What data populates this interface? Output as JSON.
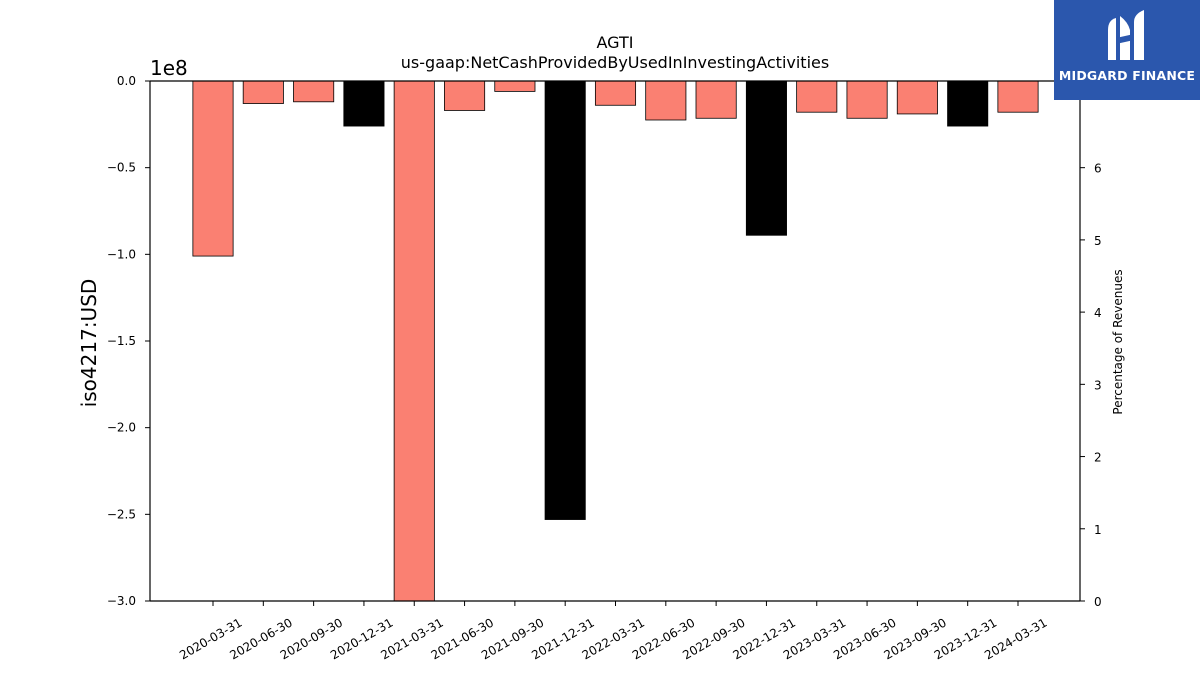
{
  "chart_data": {
    "type": "bar",
    "title": "AGTI",
    "subtitle": "us-gaap:NetCashProvidedByUsedInInvestingActivities",
    "ylabel": "iso4217:USD",
    "y2label": "Percentage of Revenues",
    "y_offset_label": "1e8",
    "ylim": [
      -3.0,
      0.0
    ],
    "y_ticks": [
      0.0,
      -0.5,
      -1.0,
      -1.5,
      -2.0,
      -2.5,
      -3.0
    ],
    "y_tick_labels": [
      "0.0",
      "−0.5",
      "−1.0",
      "−1.5",
      "−2.0",
      "−2.5",
      "−3.0"
    ],
    "y2lim": [
      0,
      7.2
    ],
    "y2_ticks": [
      0,
      1,
      2,
      3,
      4,
      5,
      6
    ],
    "y2_tick_labels": [
      "0",
      "1",
      "2",
      "3",
      "4",
      "5",
      "6"
    ],
    "categories": [
      "2020-03-31",
      "2020-06-30",
      "2020-09-30",
      "2020-12-31",
      "2021-03-31",
      "2021-06-30",
      "2021-09-30",
      "2021-12-31",
      "2022-03-31",
      "2022-06-30",
      "2022-09-30",
      "2022-12-31",
      "2023-03-31",
      "2023-06-30",
      "2023-09-30",
      "2023-12-31",
      "2024-03-31"
    ],
    "values": [
      -1.01,
      -0.13,
      -0.12,
      -0.26,
      -3.0,
      -0.17,
      -0.06,
      -2.53,
      -0.14,
      -0.225,
      -0.215,
      -0.89,
      -0.18,
      -0.215,
      -0.19,
      -0.26,
      -0.18
    ],
    "bar_colors": [
      "#fa8072",
      "#fa8072",
      "#fa8072",
      "#000000",
      "#fa8072",
      "#fa8072",
      "#fa8072",
      "#000000",
      "#fa8072",
      "#fa8072",
      "#fa8072",
      "#000000",
      "#fa8072",
      "#fa8072",
      "#fa8072",
      "#000000",
      "#fa8072"
    ],
    "grid": false
  },
  "logo": {
    "text": "MIDGARD FINANCE",
    "icon": "midgard-logo-icon",
    "color": "#2b57ad"
  }
}
